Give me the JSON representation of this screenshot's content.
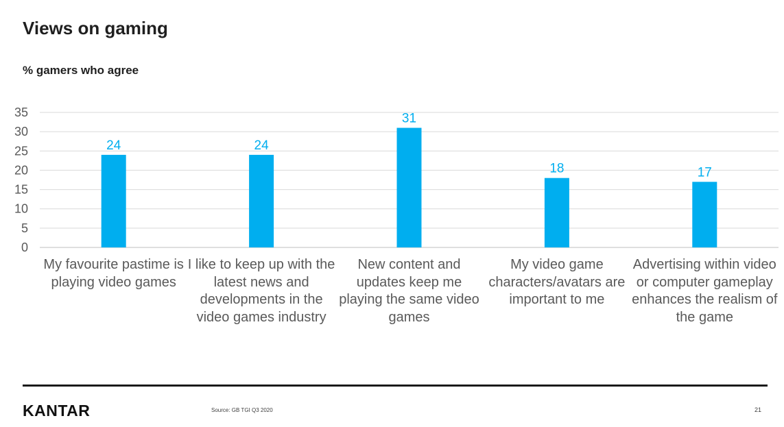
{
  "page": {
    "title": "Views on gaming",
    "subtitle": "% gamers who agree"
  },
  "chart_data": {
    "type": "bar",
    "title": "Views on gaming",
    "subtitle": "% gamers who agree",
    "categories": [
      "My favourite pastime is playing video games",
      "I like to keep up with the latest news and developments in the video games industry",
      "New content and updates keep me playing the same video games",
      "My video game characters/avatars are important to me",
      "Advertising within video or computer gameplay enhances the realism of the game"
    ],
    "values": [
      24,
      24,
      31,
      18,
      17
    ],
    "xlabel": "",
    "ylabel": "",
    "ylim": [
      0,
      35
    ],
    "yticks": [
      0,
      5,
      10,
      15,
      20,
      25,
      30,
      35
    ],
    "grid": true,
    "legend": "none",
    "bar_color": "#00aeef",
    "label_color": "#00aeef"
  },
  "footer": {
    "brand": "KANTAR",
    "source": "Source: GB TGI Q3 2020",
    "page_number": "21"
  }
}
